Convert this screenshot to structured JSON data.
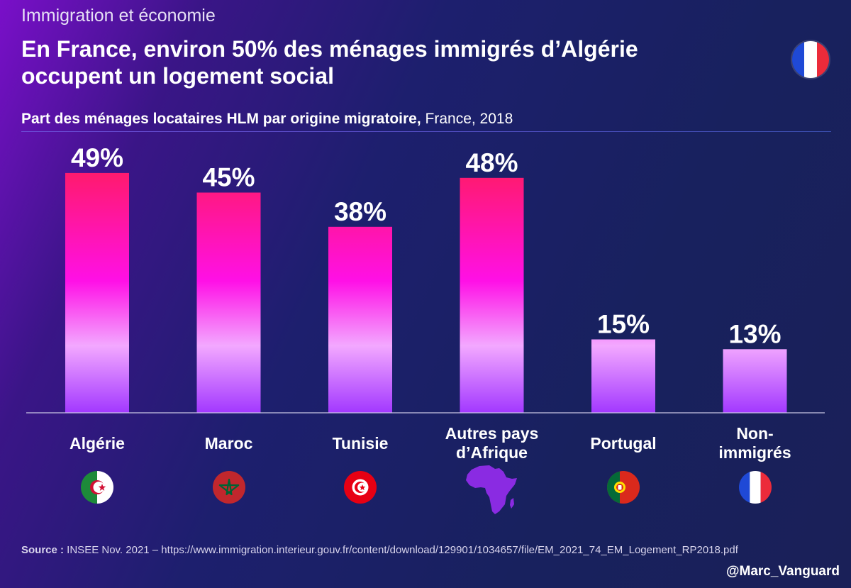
{
  "header": {
    "kicker": "Immigration et économie",
    "headline": "En France, environ 50% des ménages immigrés d’Algérie occupent un logement social",
    "flag_icon": "france-flag-icon"
  },
  "subtitle": {
    "bold": "Part des ménages locataires HLM par origine migratoire,",
    "normal": " France, 2018"
  },
  "chart_data": {
    "type": "bar",
    "title": "Part des ménages locataires HLM par origine migratoire, France, 2018",
    "categories": [
      "Algérie",
      "Maroc",
      "Tunisie",
      "Autres pays d’Afrique",
      "Portugal",
      "Non-immigrés"
    ],
    "category_lines": [
      [
        "Algérie"
      ],
      [
        "Maroc"
      ],
      [
        "Tunisie"
      ],
      [
        "Autres pays",
        "d’Afrique"
      ],
      [
        "Portugal"
      ],
      [
        "Non-",
        "immigrés"
      ]
    ],
    "values": [
      49,
      45,
      38,
      48,
      15,
      13
    ],
    "value_labels": [
      "49%",
      "45%",
      "38%",
      "48%",
      "15%",
      "13%"
    ],
    "unit": "%",
    "ylim": [
      0,
      50
    ],
    "grid": false,
    "icons": [
      "algeria-flag-icon",
      "morocco-flag-icon",
      "tunisia-flag-icon",
      "africa-map-icon",
      "portugal-flag-icon",
      "france-flag-icon"
    ],
    "colors": {
      "bar_top": "#ff1a6e",
      "bar_mid": "#ff10e6",
      "bar_light": "#f3a8ff",
      "bar_bottom": "#a238ff",
      "africa": "#8a2be2"
    }
  },
  "footer": {
    "source_label": "Source :",
    "source_text": " INSEE Nov. 2021 –  https://www.immigration.interieur.gouv.fr/content/download/129901/1034657/file/EM_2021_74_EM_Logement_RP2018.pdf",
    "handle": "@Marc_Vanguard"
  }
}
